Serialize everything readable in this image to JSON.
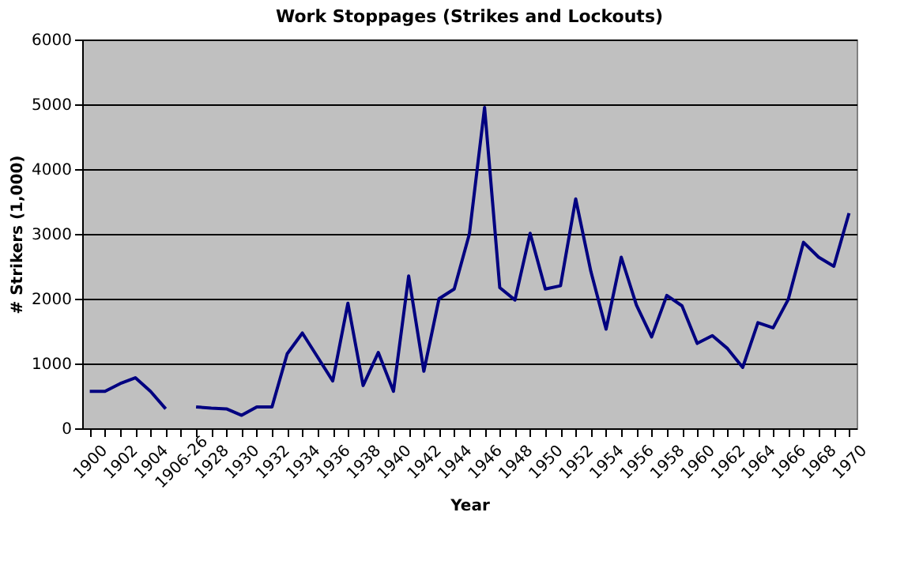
{
  "chart_data": {
    "type": "line",
    "title": "Work Stoppages (Strikes and Lockouts)",
    "xlabel": "Year",
    "ylabel": "# Strikers (1,000)",
    "categories": [
      "1900",
      null,
      "1902",
      null,
      "1904",
      null,
      "1906-26",
      null,
      "1928",
      null,
      "1930",
      null,
      "1932",
      null,
      "1934",
      null,
      "1936",
      null,
      "1938",
      null,
      "1940",
      null,
      "1942",
      null,
      "1944",
      null,
      "1946",
      null,
      "1948",
      null,
      "1950",
      null,
      "1952",
      null,
      "1954",
      null,
      "1956",
      null,
      "1958",
      null,
      "1960",
      null,
      "1962",
      null,
      "1964",
      null,
      "1966",
      null,
      "1968",
      null,
      "1970"
    ],
    "series": [
      {
        "color": "#000080",
        "values": [
          570,
          570,
          690,
          780,
          570,
          300,
          null,
          330,
          310,
          300,
          200,
          330,
          330,
          1150,
          1470,
          1100,
          730,
          1930,
          660,
          1170,
          570,
          2350,
          880,
          2000,
          2150,
          3000,
          4950,
          2170,
          1980,
          3010,
          2150,
          2200,
          3540,
          2420,
          1530,
          2640,
          1900,
          1410,
          2050,
          1890,
          1310,
          1430,
          1230,
          940,
          1630,
          1550,
          1990,
          2870,
          2640,
          2500,
          3320
        ]
      }
    ],
    "ylim": [
      0,
      6000
    ],
    "yticks": [
      0,
      1000,
      2000,
      3000,
      4000,
      5000,
      6000
    ],
    "grid": "y",
    "marker": "none",
    "line_style": "solid"
  }
}
